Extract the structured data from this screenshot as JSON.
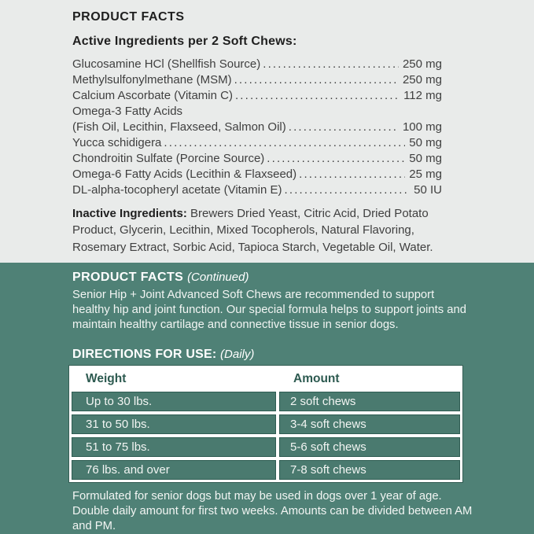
{
  "colors": {
    "page_top_bg": "#e9ebea",
    "panel_green": "#4f8176",
    "row_green": "#4a7a6f",
    "row_border_green": "#2f5d53",
    "header_text_green": "#2d5a50",
    "dark_text": "#1f1f1f",
    "body_text": "#3f3f3f",
    "light_text": "#f2f5f3"
  },
  "top": {
    "title": "PRODUCT FACTS",
    "active_heading": "Active Ingredients per 2 Soft Chews:",
    "ingredients": [
      {
        "name": "Glucosamine HCl (Shellfish Source)",
        "amount": "250 mg"
      },
      {
        "name": "Methylsulfonylmethane (MSM)",
        "amount": "250 mg"
      },
      {
        "name": "Calcium Ascorbate (Vitamin C)",
        "amount": "112 mg"
      },
      {
        "name": "Omega-3 Fatty Acids",
        "amount": ""
      },
      {
        "name": "(Fish Oil, Lecithin, Flaxseed, Salmon Oil)",
        "amount": "100 mg"
      },
      {
        "name": "Yucca schidigera",
        "amount": "50 mg"
      },
      {
        "name": "Chondroitin Sulfate (Porcine Source)",
        "amount": "50 mg"
      },
      {
        "name": "Omega-6 Fatty Acids (Lecithin & Flaxseed)",
        "amount": "25 mg"
      },
      {
        "name": "DL-alpha-tocopheryl acetate (Vitamin E)",
        "amount": "50 IU"
      }
    ],
    "inactive_label": "Inactive Ingredients:",
    "inactive_text": "Brewers Dried Yeast, Citric Acid, Dried Potato Product, Glycerin, Lecithin, Mixed Tocopherols, Natural Flavoring, Rosemary Extract, Sorbic Acid, Tapioca Starch, Vegetable Oil, Water."
  },
  "bottom": {
    "title": "PRODUCT FACTS",
    "title_note": "(Continued)",
    "description": "Senior Hip + Joint Advanced Soft Chews are recommended to support healthy hip and joint function. Our special formula helps to support joints and maintain healthy cartilage and connective tissue in senior dogs.",
    "directions_heading": "DIRECTIONS FOR USE:",
    "directions_note": "(Daily)",
    "table": {
      "headers": [
        "Weight",
        "Amount"
      ],
      "rows": [
        {
          "weight": "Up to 30 lbs.",
          "amount": "2 soft chews"
        },
        {
          "weight": "31 to 50 lbs.",
          "amount": "3-4 soft chews"
        },
        {
          "weight": "51 to 75 lbs.",
          "amount": "5-6 soft chews"
        },
        {
          "weight": "76 lbs. and over",
          "amount": "7-8 soft chews"
        }
      ]
    },
    "footnote": "Formulated for senior dogs but may be used in dogs over 1 year of age. Double daily amount for first two weeks. Amounts can be divided between AM and PM."
  }
}
